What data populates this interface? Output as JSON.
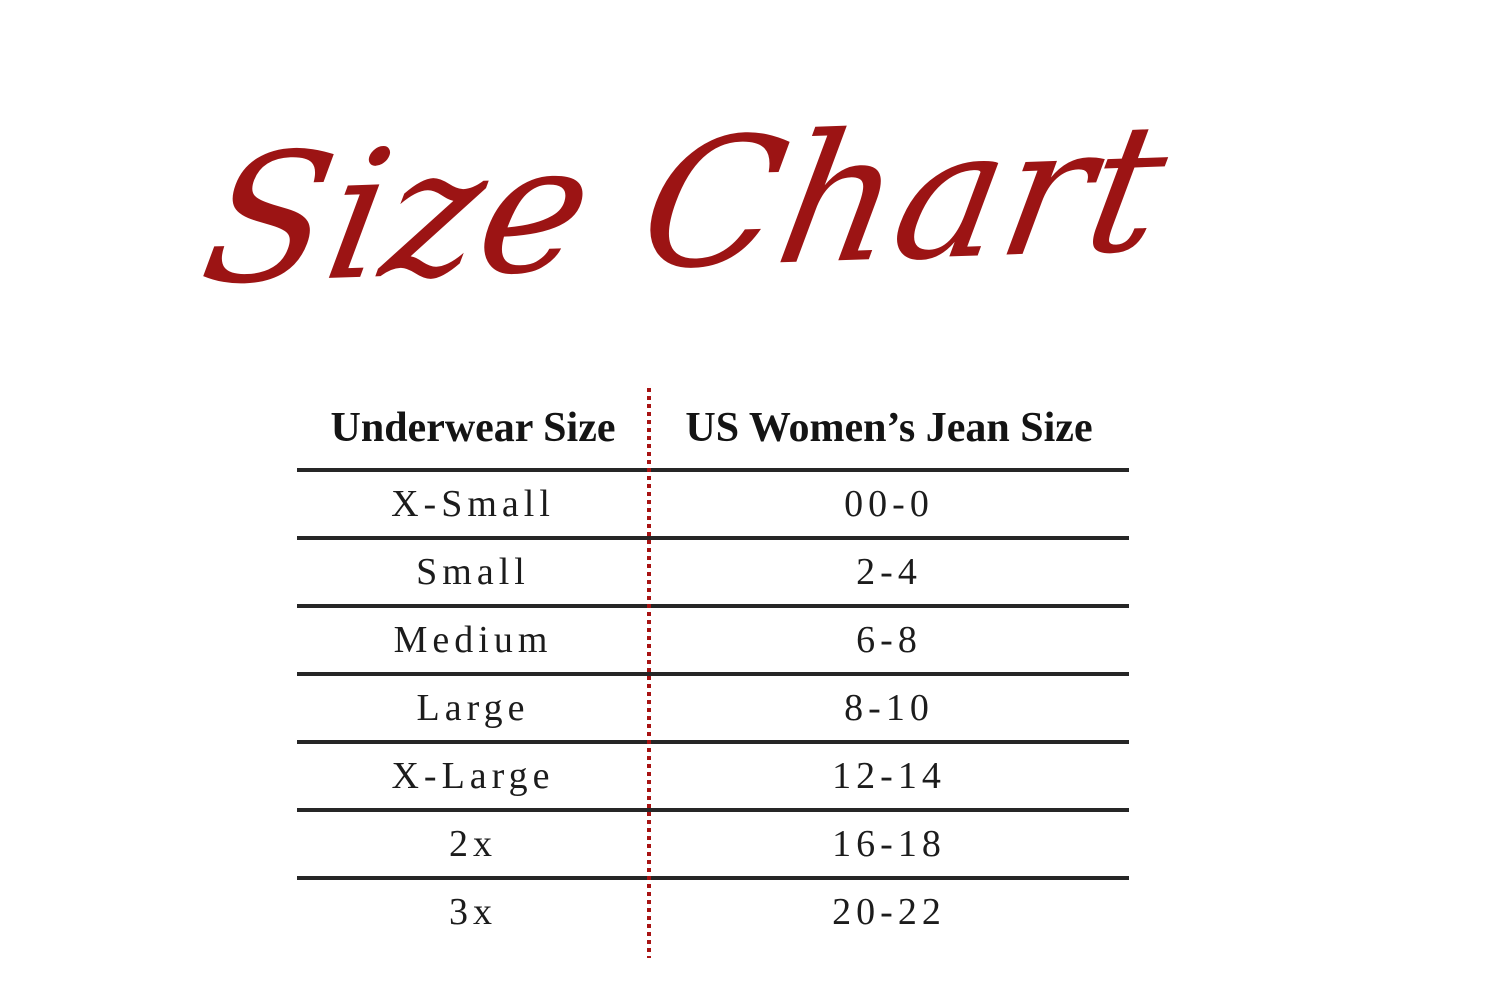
{
  "title": {
    "text": "Size Chart",
    "color": "#9c1414"
  },
  "colors": {
    "title_red": "#9c1414",
    "divider_dot_red": "#a81414",
    "rule_line": "#262626",
    "body_text": "#1c1c1c",
    "background": "#ffffff"
  },
  "table": {
    "headers": {
      "col1": "Underwear Size",
      "col2": "US Women’s Jean Size"
    },
    "rows": [
      {
        "size": "X-Small",
        "jean": "00-0"
      },
      {
        "size": "Small",
        "jean": "2-4"
      },
      {
        "size": "Medium",
        "jean": "6-8"
      },
      {
        "size": "Large",
        "jean": "8-10"
      },
      {
        "size": "X-Large",
        "jean": "12-14"
      },
      {
        "size": "2x",
        "jean": "16-18"
      },
      {
        "size": "3x",
        "jean": "20-22"
      }
    ]
  },
  "chart_data": {
    "type": "table",
    "title": "Size Chart",
    "columns": [
      "Underwear Size",
      "US Women’s Jean Size"
    ],
    "rows": [
      [
        "X-Small",
        "00-0"
      ],
      [
        "Small",
        "2-4"
      ],
      [
        "Medium",
        "6-8"
      ],
      [
        "Large",
        "8-10"
      ],
      [
        "X-Large",
        "12-14"
      ],
      [
        "2x",
        "16-18"
      ],
      [
        "3x",
        "20-22"
      ]
    ]
  }
}
